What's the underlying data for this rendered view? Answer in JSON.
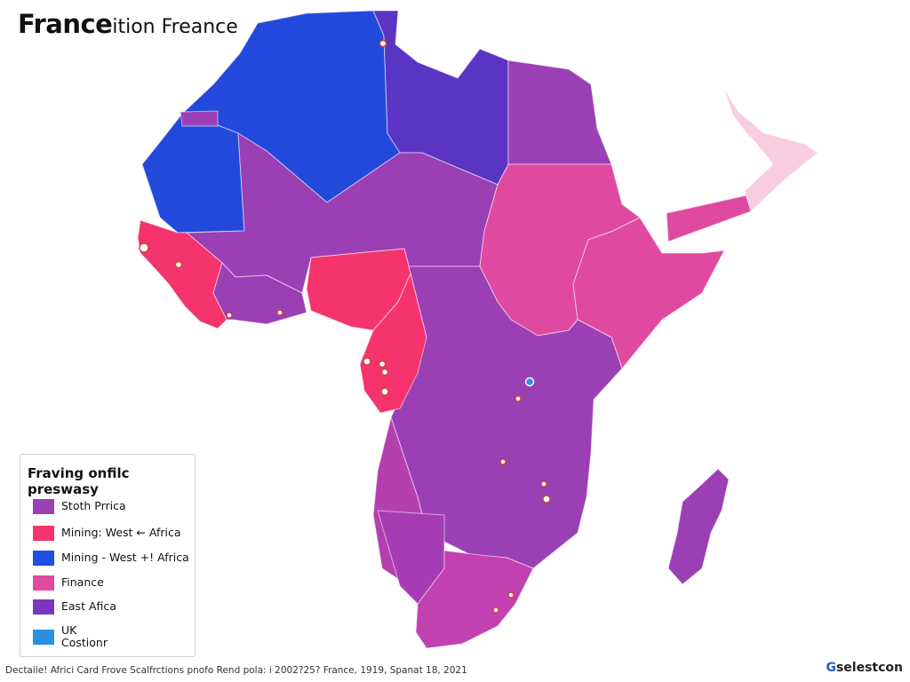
{
  "title": {
    "bold": "France",
    "rest": "ition Freance"
  },
  "legend": {
    "title": "Fraving onfilc preswasy",
    "items": [
      {
        "label": "Stoth Prrica",
        "color": "#9b3fb5"
      },
      {
        "label": "Mining: West ← Africa",
        "color": "#f5336d"
      },
      {
        "label": "Mining - West +! Africa",
        "color": "#1f4fe0"
      },
      {
        "label": "Finance",
        "color": "#e24aa2"
      },
      {
        "label": "East Afica",
        "color": "#7b35c1"
      },
      {
        "label": "UK\nCostionr",
        "color": "#2d8fe0"
      }
    ]
  },
  "footer": "Dectaile! Africi Card Frove Scalfrctions pnofo Rend pola: i 2002?25? France, 1919, Spanat 18, 2021",
  "brand": {
    "g": "G",
    "rest": "selestcon"
  },
  "colors": {
    "mining_blue": "#2349dc",
    "east_purple": "#5a35c4",
    "south_purple": "#9b3fb5",
    "finance_pink": "#df4aa0",
    "mining_red": "#f5336d",
    "light_pink": "#f8cde0",
    "marker_blue": "#2d8fe0"
  }
}
